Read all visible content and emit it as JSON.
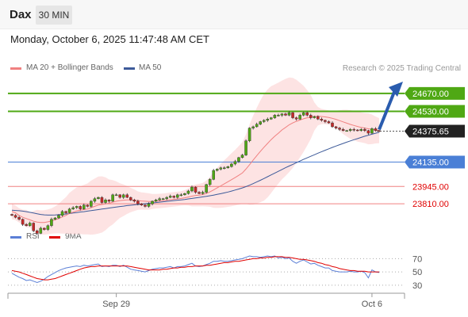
{
  "header": {
    "symbol": "Dax",
    "interval": "30 MIN",
    "datetime": "Monday, October 6, 2025 11:47:48 AM CET"
  },
  "legend": {
    "main": [
      {
        "label": "MA 20 + Bollinger Bands",
        "color": "#f08080"
      },
      {
        "label": "MA 50",
        "color": "#3d5a99"
      }
    ],
    "rsi": [
      {
        "label": "RSI",
        "color": "#5b7fd6"
      },
      {
        "label": "9MA",
        "color": "#e00000"
      }
    ]
  },
  "copyright": "Research © 2025 Trading Central",
  "colors": {
    "resistance": "#4fa814",
    "support": "#f08080",
    "current": "#222222",
    "pivot": "#4a7fd6",
    "arrow": "#2a5cae"
  },
  "chart_data": [
    {
      "type": "candlestick",
      "y_range": [
        23700,
        24780
      ],
      "x_ticks": [
        {
          "label": "Sep 29",
          "index": 29
        },
        {
          "label": "Oct 6",
          "index": 100
        }
      ],
      "levels": [
        {
          "value": 24670,
          "label": "24670.00",
          "kind": "resistance"
        },
        {
          "value": 24530,
          "label": "24530.00",
          "kind": "resistance"
        },
        {
          "value": 24375.65,
          "label": "24375.65",
          "kind": "current"
        },
        {
          "value": 24135,
          "label": "24135.00",
          "kind": "pivot"
        },
        {
          "value": 23945,
          "label": "23945.00",
          "kind": "support"
        },
        {
          "value": 23810,
          "label": "23810.00",
          "kind": "support"
        }
      ],
      "close": [
        23720,
        23705,
        23690,
        23650,
        23640,
        23660,
        23600,
        23580,
        23620,
        23610,
        23640,
        23690,
        23700,
        23720,
        23750,
        23740,
        23770,
        23780,
        23790,
        23770,
        23800,
        23790,
        23830,
        23850,
        23860,
        23820,
        23840,
        23830,
        23880,
        23880,
        23860,
        23880,
        23860,
        23840,
        23830,
        23810,
        23800,
        23790,
        23810,
        23830,
        23840,
        23850,
        23850,
        23860,
        23870,
        23860,
        23880,
        23880,
        23890,
        23910,
        23940,
        23900,
        23890,
        23900,
        23960,
        24000,
        24070,
        24080,
        24090,
        24090,
        24100,
        24120,
        24140,
        24170,
        24190,
        24300,
        24400,
        24410,
        24430,
        24450,
        24460,
        24470,
        24480,
        24500,
        24500,
        24510,
        24500,
        24520,
        24480,
        24470,
        24500,
        24520,
        24500,
        24480,
        24490,
        24470,
        24460,
        24450,
        24440,
        24410,
        24400,
        24390,
        24380,
        24380,
        24390,
        24385,
        24380,
        24390,
        24380,
        24360,
        24395,
        24380,
        24375.65
      ],
      "ma20": [
        23750,
        23740,
        23720,
        23705,
        23695,
        23685,
        23675,
        23668,
        23665,
        23665,
        23670,
        23676,
        23685,
        23695,
        23708,
        23720,
        23735,
        23745,
        23755,
        23760,
        23765,
        23770,
        23780,
        23790,
        23800,
        23805,
        23810,
        23815,
        23822,
        23830,
        23835,
        23838,
        23840,
        23840,
        23838,
        23835,
        23832,
        23830,
        23828,
        23828,
        23830,
        23832,
        23835,
        23838,
        23842,
        23845,
        23848,
        23852,
        23857,
        23863,
        23870,
        23875,
        23878,
        23882,
        23890,
        23903,
        23918,
        23934,
        23950,
        23966,
        23982,
        23998,
        24014,
        24032,
        24050,
        24080,
        24115,
        24150,
        24185,
        24218,
        24250,
        24280,
        24310,
        24336,
        24360,
        24385,
        24405,
        24425,
        24440,
        24452,
        24462,
        24472,
        24480,
        24486,
        24490,
        24492,
        24490,
        24487,
        24482,
        24476,
        24468,
        24458,
        24448,
        24438,
        24428,
        24420,
        24412,
        24405,
        24400,
        24394,
        24390,
        24385,
        24380
      ],
      "ma50": [
        23760,
        23758,
        23756,
        23753,
        23749,
        23744,
        23738,
        23732,
        23727,
        23724,
        23722,
        23722,
        23723,
        23725,
        23728,
        23731,
        23734,
        23738,
        23742,
        23746,
        23749,
        23753,
        23757,
        23761,
        23765,
        23769,
        23773,
        23777,
        23781,
        23785,
        23789,
        23792,
        23796,
        23799,
        23802,
        23805,
        23808,
        23811,
        23814,
        23817,
        23820,
        23823,
        23826,
        23829,
        23832,
        23835,
        23838,
        23841,
        23844,
        23848,
        23852,
        23856,
        23860,
        23864,
        23868,
        23873,
        23878,
        23883,
        23889,
        23895,
        23902,
        23909,
        23917,
        23925,
        23934,
        23944,
        23955,
        23967,
        23980,
        23993,
        24007,
        24021,
        24035,
        24049,
        24063,
        24077,
        24091,
        24104,
        24117,
        24130,
        24143,
        24156,
        24168,
        24180,
        24192,
        24204,
        24216,
        24227,
        24238,
        24249,
        24260,
        24270,
        24280,
        24290,
        24300,
        24309,
        24318,
        24327,
        24336,
        24344,
        24352,
        24360,
        24367
      ]
    },
    {
      "type": "line",
      "title": "RSI",
      "y_range": [
        25,
        80
      ],
      "y_ticks": [
        70,
        50,
        30
      ],
      "series": [
        {
          "name": "RSI",
          "values": [
            48,
            45,
            42,
            40,
            37,
            38,
            36,
            34,
            36,
            39,
            43,
            46,
            49,
            52,
            54,
            56,
            57,
            58,
            59,
            58,
            60,
            59,
            60,
            61,
            62,
            58,
            59,
            58,
            60,
            60,
            58,
            60,
            57,
            54,
            53,
            52,
            51,
            50,
            52,
            54,
            55,
            56,
            56,
            57,
            58,
            56,
            58,
            58,
            59,
            61,
            63,
            59,
            58,
            59,
            61,
            63,
            66,
            66,
            67,
            66,
            66,
            67,
            68,
            69,
            70,
            72,
            74,
            73,
            73,
            72,
            73,
            74,
            73,
            74,
            71,
            72,
            70,
            71,
            66,
            63,
            66,
            68,
            65,
            62,
            63,
            60,
            58,
            56,
            56,
            52,
            51,
            50,
            50,
            50,
            51,
            50,
            50,
            51,
            49,
            41,
            53,
            50,
            49
          ]
        },
        {
          "name": "9MA",
          "values": [
            52,
            51,
            50,
            48,
            46,
            44,
            42,
            40,
            39,
            38,
            38,
            39,
            40,
            42,
            44,
            46,
            48,
            50,
            52,
            54,
            56,
            57,
            58,
            58,
            59,
            59,
            59,
            59,
            59,
            59,
            59,
            59,
            59,
            58,
            57,
            56,
            55,
            54,
            53,
            53,
            53,
            53,
            54,
            54,
            55,
            56,
            56,
            57,
            57,
            58,
            58,
            59,
            59,
            59,
            60,
            60,
            61,
            62,
            63,
            64,
            64,
            65,
            66,
            66,
            67,
            68,
            69,
            70,
            70,
            71,
            71,
            72,
            72,
            73,
            73,
            73,
            72,
            72,
            71,
            70,
            69,
            69,
            68,
            67,
            66,
            64,
            63,
            61,
            60,
            58,
            57,
            55,
            54,
            53,
            52,
            52,
            51,
            51,
            51,
            50,
            50,
            50,
            50
          ]
        }
      ]
    }
  ]
}
